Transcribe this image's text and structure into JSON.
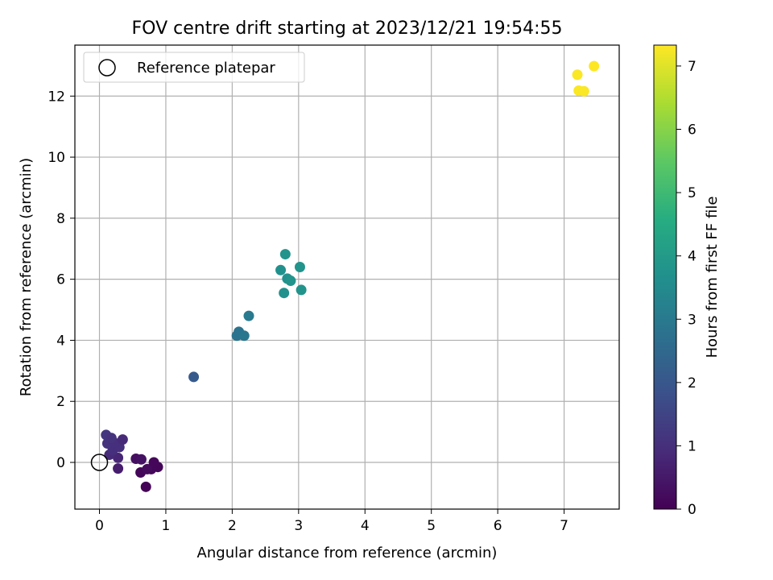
{
  "chart_data": {
    "type": "scatter",
    "title": "FOV centre drift starting at 2023/12/21 19:54:55",
    "xlabel": "Angular distance from reference (arcmin)",
    "ylabel": "Rotation from reference (arcmin)",
    "xlim": [
      -0.37,
      7.83
    ],
    "ylim": [
      -1.53,
      13.67
    ],
    "xticks": [
      0,
      1,
      2,
      3,
      4,
      5,
      6,
      7
    ],
    "yticks": [
      0,
      2,
      4,
      6,
      8,
      10,
      12
    ],
    "grid": true,
    "legend": {
      "label": "Reference platepar",
      "placement": "top-left"
    },
    "reference_point": {
      "x": 0,
      "y": 0
    },
    "colorbar": {
      "label": "Hours from first FF file",
      "colormap": "viridis",
      "range": [
        0,
        7.33
      ],
      "ticks": [
        0,
        1,
        2,
        3,
        4,
        5,
        6,
        7
      ]
    },
    "points": [
      {
        "x": 0.7,
        "y": -0.8,
        "hours": 0.05
      },
      {
        "x": 0.62,
        "y": -0.33,
        "hours": 0.1
      },
      {
        "x": 0.78,
        "y": -0.22,
        "hours": 0.15
      },
      {
        "x": 0.88,
        "y": -0.15,
        "hours": 0.1
      },
      {
        "x": 0.82,
        "y": 0.0,
        "hours": 0.12
      },
      {
        "x": 0.72,
        "y": -0.22,
        "hours": 0.2
      },
      {
        "x": 0.55,
        "y": 0.12,
        "hours": 0.3
      },
      {
        "x": 0.63,
        "y": 0.1,
        "hours": 0.35
      },
      {
        "x": 0.28,
        "y": -0.2,
        "hours": 0.6
      },
      {
        "x": 0.28,
        "y": 0.15,
        "hours": 0.8
      },
      {
        "x": 0.15,
        "y": 0.25,
        "hours": 0.9
      },
      {
        "x": 0.2,
        "y": 0.4,
        "hours": 1.0
      },
      {
        "x": 0.3,
        "y": 0.5,
        "hours": 1.0
      },
      {
        "x": 0.12,
        "y": 0.62,
        "hours": 1.1
      },
      {
        "x": 0.22,
        "y": 0.65,
        "hours": 1.0
      },
      {
        "x": 0.35,
        "y": 0.75,
        "hours": 0.9
      },
      {
        "x": 0.1,
        "y": 0.9,
        "hours": 1.2
      },
      {
        "x": 0.18,
        "y": 0.8,
        "hours": 1.1
      },
      {
        "x": 1.42,
        "y": 2.8,
        "hours": 2.1
      },
      {
        "x": 2.07,
        "y": 4.15,
        "hours": 2.8
      },
      {
        "x": 2.1,
        "y": 4.28,
        "hours": 2.8
      },
      {
        "x": 2.18,
        "y": 4.15,
        "hours": 2.9
      },
      {
        "x": 2.25,
        "y": 4.8,
        "hours": 3.0
      },
      {
        "x": 2.73,
        "y": 6.3,
        "hours": 3.7
      },
      {
        "x": 2.8,
        "y": 6.82,
        "hours": 3.8
      },
      {
        "x": 2.78,
        "y": 5.55,
        "hours": 3.7
      },
      {
        "x": 2.83,
        "y": 6.02,
        "hours": 3.7
      },
      {
        "x": 2.88,
        "y": 5.95,
        "hours": 3.8
      },
      {
        "x": 3.02,
        "y": 6.4,
        "hours": 3.8
      },
      {
        "x": 3.04,
        "y": 5.65,
        "hours": 3.8
      },
      {
        "x": 7.2,
        "y": 12.7,
        "hours": 7.3
      },
      {
        "x": 7.22,
        "y": 12.18,
        "hours": 7.3
      },
      {
        "x": 7.3,
        "y": 12.16,
        "hours": 7.3
      },
      {
        "x": 7.45,
        "y": 12.98,
        "hours": 7.33
      }
    ]
  }
}
